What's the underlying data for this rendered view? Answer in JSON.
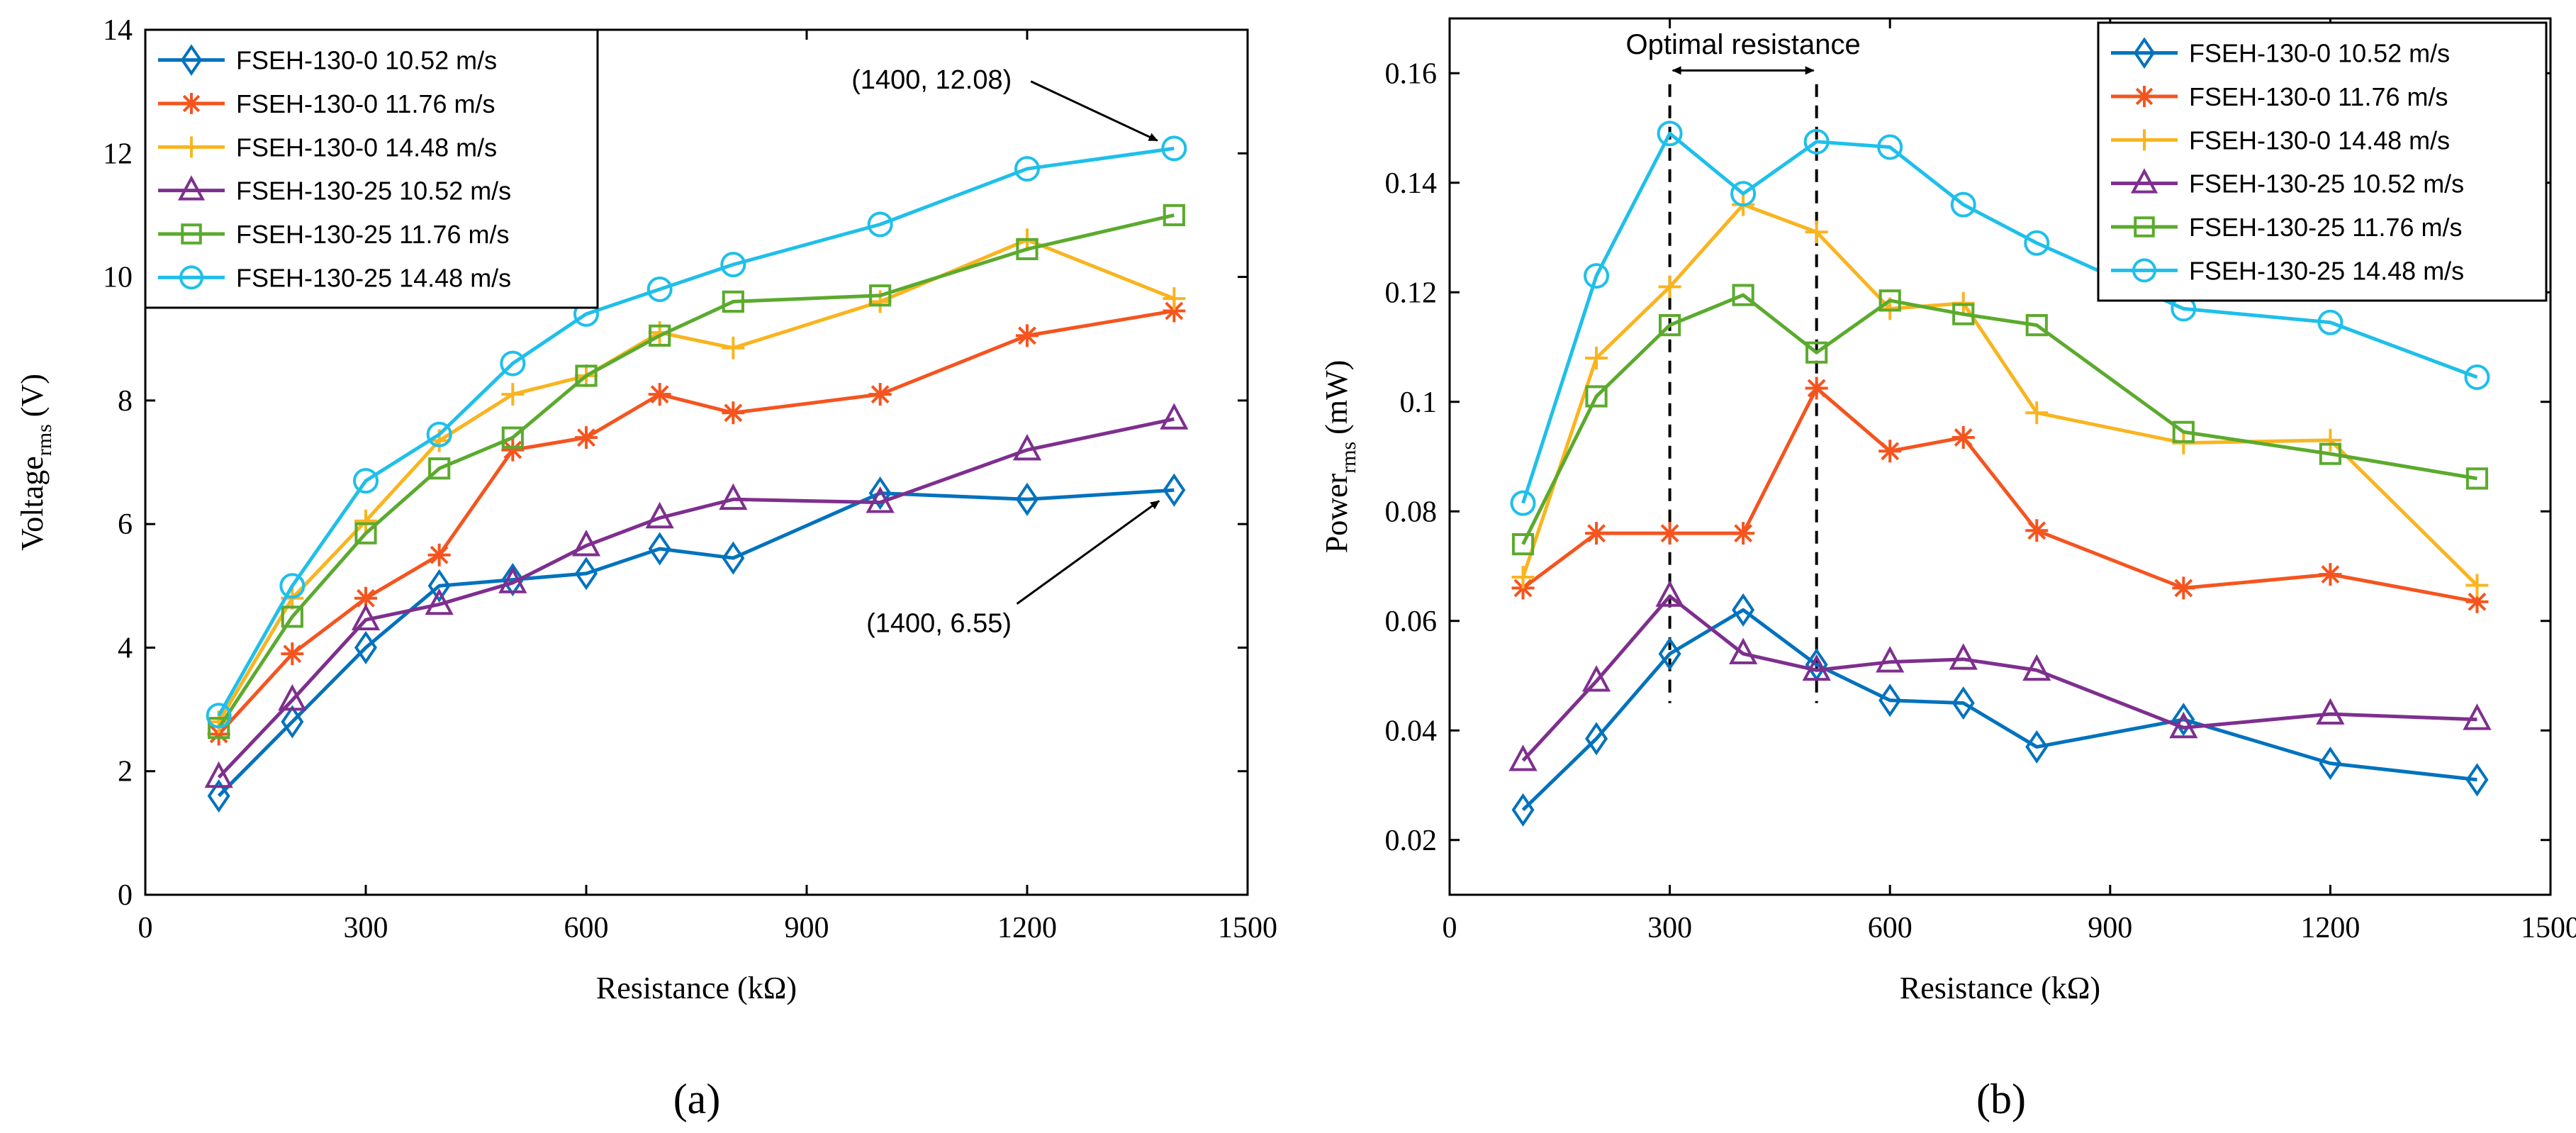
{
  "colors": {
    "series": [
      "#0072BD",
      "#F5541F",
      "#F9B41F",
      "#7E2F8E",
      "#5BAA2E",
      "#1FBFEA"
    ],
    "axis": "#000000",
    "background": "#ffffff"
  },
  "chart_data": [
    {
      "type": "line",
      "panel_label": "(a)",
      "xlabel": "Resistance (kΩ)",
      "ylabel_main": "Voltage",
      "ylabel_sub": "rms",
      "ylabel_unit": "(V)",
      "xlim": [
        0,
        1500
      ],
      "ylim": [
        0,
        14
      ],
      "xticks": [
        0,
        300,
        600,
        900,
        1200,
        1500
      ],
      "yticks": [
        0,
        2,
        4,
        6,
        8,
        10,
        12,
        14
      ],
      "ytick_labels": [
        "0",
        "2",
        "4",
        "6",
        "8",
        "10",
        "12",
        "14"
      ],
      "legend_position": "top-left",
      "series": [
        {
          "name": "FSEH-130-0 10.52 m/s",
          "marker": "diamond",
          "x": [
            100,
            200,
            300,
            400,
            500,
            600,
            700,
            800,
            1000,
            1200,
            1400
          ],
          "values": [
            1.6,
            2.8,
            4.0,
            5.0,
            5.1,
            5.2,
            5.6,
            5.45,
            6.5,
            6.4,
            6.55
          ]
        },
        {
          "name": "FSEH-130-0 11.76 m/s",
          "marker": "asterisk",
          "x": [
            100,
            200,
            300,
            400,
            500,
            600,
            700,
            800,
            1000,
            1200,
            1400
          ],
          "values": [
            2.6,
            3.9,
            4.8,
            5.5,
            7.2,
            7.4,
            8.1,
            7.8,
            8.1,
            9.05,
            9.45
          ]
        },
        {
          "name": "FSEH-130-0 14.48 m/s",
          "marker": "plus",
          "x": [
            100,
            200,
            300,
            400,
            500,
            600,
            700,
            800,
            1000,
            1200,
            1400
          ],
          "values": [
            2.8,
            4.8,
            6.05,
            7.35,
            8.1,
            8.4,
            9.1,
            8.85,
            9.6,
            10.6,
            9.65
          ]
        },
        {
          "name": "FSEH-130-25 10.52 m/s",
          "marker": "triangle",
          "x": [
            100,
            200,
            300,
            400,
            500,
            600,
            700,
            800,
            1000,
            1200,
            1400
          ],
          "values": [
            1.9,
            3.15,
            4.45,
            4.7,
            5.05,
            5.65,
            6.1,
            6.4,
            6.35,
            7.2,
            7.7
          ]
        },
        {
          "name": "FSEH-130-25 11.76 m/s",
          "marker": "square",
          "x": [
            100,
            200,
            300,
            400,
            500,
            600,
            700,
            800,
            1000,
            1200,
            1400
          ],
          "values": [
            2.7,
            4.5,
            5.85,
            6.9,
            7.4,
            8.4,
            9.05,
            9.6,
            9.7,
            10.45,
            11.0
          ]
        },
        {
          "name": "FSEH-130-25 14.48 m/s",
          "marker": "circle",
          "x": [
            100,
            200,
            300,
            400,
            500,
            600,
            700,
            800,
            1000,
            1200,
            1400
          ],
          "values": [
            2.9,
            5.0,
            6.7,
            7.45,
            8.6,
            9.4,
            9.8,
            10.2,
            10.85,
            11.75,
            12.08
          ]
        }
      ],
      "annotations": [
        {
          "text": "(1400, 12.08)",
          "target": [
            1400,
            12.08
          ],
          "text_at": [
            1070,
            13.05
          ],
          "anchor": "middle"
        },
        {
          "text": "(1400, 6.55)",
          "target": [
            1400,
            6.55
          ],
          "text_at": [
            1080,
            4.25
          ],
          "anchor": "middle"
        }
      ]
    },
    {
      "type": "line",
      "panel_label": "(b)",
      "xlabel": "Resistance (kΩ)",
      "ylabel_main": "Power",
      "ylabel_sub": "rms",
      "ylabel_unit": "(mW)",
      "xlim": [
        0,
        1500
      ],
      "ylim": [
        0.01,
        0.17
      ],
      "xticks": [
        0,
        300,
        600,
        900,
        1200,
        1500
      ],
      "yticks": [
        0.02,
        0.04,
        0.06,
        0.08,
        0.1,
        0.12,
        0.14,
        0.16
      ],
      "ytick_labels": [
        "0.02",
        "0.04",
        "0.06",
        "0.08",
        "0.1",
        "0.12",
        "0.14",
        "0.16"
      ],
      "legend_position": "top-right",
      "series": [
        {
          "name": "FSEH-130-0 10.52 m/s",
          "marker": "diamond",
          "x": [
            100,
            200,
            300,
            400,
            500,
            600,
            700,
            800,
            1000,
            1200,
            1400
          ],
          "values": [
            0.0255,
            0.0385,
            0.054,
            0.062,
            0.052,
            0.0455,
            0.045,
            0.037,
            0.042,
            0.034,
            0.031
          ]
        },
        {
          "name": "FSEH-130-0 11.76 m/s",
          "marker": "asterisk",
          "x": [
            100,
            200,
            300,
            400,
            500,
            600,
            700,
            800,
            1000,
            1200,
            1400
          ],
          "values": [
            0.066,
            0.076,
            0.076,
            0.076,
            0.1025,
            0.091,
            0.0935,
            0.0765,
            0.066,
            0.0685,
            0.0635
          ]
        },
        {
          "name": "FSEH-130-0 14.48 m/s",
          "marker": "plus",
          "x": [
            100,
            200,
            300,
            400,
            500,
            600,
            700,
            800,
            1000,
            1200,
            1400
          ],
          "values": [
            0.068,
            0.108,
            0.121,
            0.136,
            0.131,
            0.117,
            0.118,
            0.098,
            0.0925,
            0.093,
            0.0665
          ]
        },
        {
          "name": "FSEH-130-25 10.52 m/s",
          "marker": "triangle",
          "x": [
            100,
            200,
            300,
            400,
            500,
            600,
            700,
            800,
            1000,
            1200,
            1400
          ],
          "values": [
            0.0345,
            0.049,
            0.0645,
            0.054,
            0.051,
            0.0525,
            0.053,
            0.051,
            0.0405,
            0.043,
            0.042
          ]
        },
        {
          "name": "FSEH-130-25 11.76 m/s",
          "marker": "square",
          "x": [
            100,
            200,
            300,
            400,
            500,
            600,
            700,
            800,
            1000,
            1200,
            1400
          ],
          "values": [
            0.074,
            0.101,
            0.114,
            0.1195,
            0.109,
            0.1185,
            0.116,
            0.114,
            0.0945,
            0.0905,
            0.086
          ]
        },
        {
          "name": "FSEH-130-25 14.48 m/s",
          "marker": "circle",
          "x": [
            100,
            200,
            300,
            400,
            500,
            600,
            700,
            800,
            1000,
            1200,
            1400
          ],
          "values": [
            0.0815,
            0.123,
            0.149,
            0.138,
            0.1475,
            0.1465,
            0.136,
            0.129,
            0.117,
            0.1145,
            0.1045
          ]
        }
      ],
      "optimal_range": {
        "label": "Optimal resistance",
        "x_from": 300,
        "x_to": 500,
        "y_low": 0.045,
        "y_high": 0.158,
        "arrow_y": 0.1605,
        "label_y": 0.1635
      }
    }
  ]
}
